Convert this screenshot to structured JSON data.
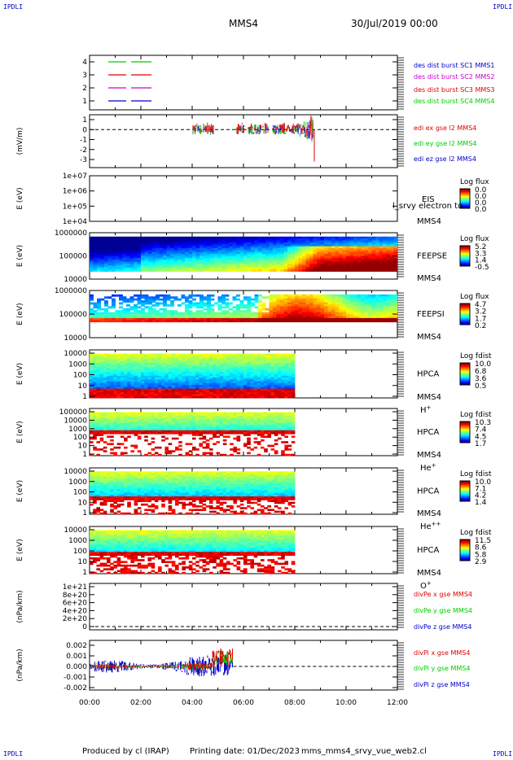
{
  "corners": {
    "tl": "IPDLI",
    "tr": "IPDLI",
    "bl": "IPDLI",
    "br": "IPDLI"
  },
  "header": {
    "title": "MMS4",
    "date": "30/Jul/2019 00:00"
  },
  "footer": {
    "producer": "Produced by cl (IRAP)",
    "printing": "Printing date: 01/Dec/2023",
    "filename": "mms_mms4_srvy_vue_web2.cl"
  },
  "colors": {
    "red": "#e00000",
    "green": "#00cc00",
    "blue": "#0000cc",
    "magenta": "#cc00cc"
  },
  "chart_data": [
    {
      "type": "line",
      "panel": "availability",
      "yticks": [
        "4",
        "3",
        "2",
        "1"
      ],
      "series": [
        {
          "name": "des dist burst SC1 MMS1",
          "color": "#0000cc"
        },
        {
          "name": "des dist burst SC2 MMS2",
          "color": "#cc00cc"
        },
        {
          "name": "des dist burst SC3 MMS3",
          "color": "#e00000"
        },
        {
          "name": "des dist burst SC4 MMS4",
          "color": "#00cc00"
        }
      ]
    },
    {
      "type": "line",
      "panel": "edi",
      "ylabel": "(mV/m)",
      "yticks": [
        "1",
        "0",
        "-1",
        "-2",
        "-3"
      ],
      "ylim": [
        -3.5,
        1.5
      ],
      "series": [
        {
          "name": "edi ex gse l2 MMS4",
          "color": "#e00000"
        },
        {
          "name": "edi ey gse l2 MMS4",
          "color": "#00cc00"
        },
        {
          "name": "edi ez gse l2 MMS4",
          "color": "#0000cc"
        }
      ]
    },
    {
      "type": "heatmap",
      "panel": "eis",
      "ylabel": "E (eV)",
      "yticks": [
        "1e+07",
        "1e+06",
        "1e+05",
        "1e+04"
      ],
      "right_label": "EIS",
      "right_label2": "MMS4",
      "overlay_text": "l_srvy electron to",
      "cbar_title": "Log flux",
      "cbar_ticks": [
        "0.0",
        "0.0",
        "0.0",
        "0.0"
      ]
    },
    {
      "type": "heatmap",
      "panel": "feepse",
      "ylabel": "E (eV)",
      "yticks": [
        "1000000",
        "100000",
        "10000"
      ],
      "right_label": "FEEPSE",
      "right_label2": "MMS4",
      "cbar_title": "Log flux",
      "cbar_ticks": [
        "5.2",
        "3.3",
        "1.4",
        "-0.5"
      ]
    },
    {
      "type": "heatmap",
      "panel": "feepsi",
      "ylabel": "E (eV)",
      "yticks": [
        "1000000",
        "100000",
        "10000"
      ],
      "right_label": "FEEPSI",
      "right_label2": "MMS4",
      "cbar_title": "Log flux",
      "cbar_ticks": [
        "4.7",
        "3.2",
        "1.7",
        "0.2"
      ]
    },
    {
      "type": "heatmap",
      "panel": "hpca_h",
      "ylabel": "E (eV)",
      "yticks": [
        "10000",
        "1000",
        "100",
        "10",
        "1"
      ],
      "right_label": "HPCA",
      "right_label2": "MMS4",
      "species": "H",
      "species_sup": "+",
      "cbar_title": "Log fdist",
      "cbar_ticks": [
        "10.0",
        "6.8",
        "3.6",
        "0.5"
      ]
    },
    {
      "type": "heatmap",
      "panel": "hpca_he",
      "ylabel": "E (eV)",
      "yticks": [
        "100000",
        "10000",
        "1000",
        "100",
        "10",
        "1"
      ],
      "right_label": "HPCA",
      "right_label2": "MMS4",
      "species": "He",
      "species_sup": "+",
      "cbar_title": "Log fdist",
      "cbar_ticks": [
        "10.3",
        "7.4",
        "4.5",
        "1.7"
      ]
    },
    {
      "type": "heatmap",
      "panel": "hpca_hepp",
      "ylabel": "E (eV)",
      "yticks": [
        "10000",
        "1000",
        "100",
        "10",
        "1"
      ],
      "right_label": "HPCA",
      "right_label2": "MMS4",
      "species": "He",
      "species_sup": "++",
      "cbar_title": "Log fdist",
      "cbar_ticks": [
        "10.0",
        "7.1",
        "4.2",
        "1.4"
      ]
    },
    {
      "type": "heatmap",
      "panel": "hpca_o",
      "ylabel": "E (eV)",
      "yticks": [
        "10000",
        "1000",
        "100",
        "10",
        "1"
      ],
      "right_label": "HPCA",
      "right_label2": "MMS4",
      "species": "O",
      "species_sup": "+",
      "cbar_title": "Log fdist",
      "cbar_ticks": [
        "11.5",
        "8.6",
        "5.8",
        "2.9"
      ]
    },
    {
      "type": "line",
      "panel": "divpe",
      "ylabel": "(nPa/km)",
      "yticks": [
        "1e+21",
        "8e+20",
        "6e+20",
        "4e+20",
        "2e+20",
        "0"
      ],
      "series": [
        {
          "name": "divPe x gse MMS4",
          "color": "#e00000"
        },
        {
          "name": "divPe y gse MMS4",
          "color": "#00cc00"
        },
        {
          "name": "divPe z gse MMS4",
          "color": "#0000cc"
        }
      ]
    },
    {
      "type": "line",
      "panel": "divpi",
      "ylabel": "(nPa/km)",
      "yticks": [
        "0.002",
        "0.001",
        "0.000",
        "-0.001",
        "-0.002"
      ],
      "ylim": [
        -0.0025,
        0.0025
      ],
      "series": [
        {
          "name": "divPi x gse MMS4",
          "color": "#e00000"
        },
        {
          "name": "divPi y gse MMS4",
          "color": "#00cc00"
        },
        {
          "name": "divPi z gse MMS4",
          "color": "#0000cc"
        }
      ]
    }
  ],
  "xaxis": {
    "ticks": [
      "00:00",
      "02:00",
      "04:00",
      "06:00",
      "08:00",
      "10:00",
      "12:00"
    ]
  }
}
